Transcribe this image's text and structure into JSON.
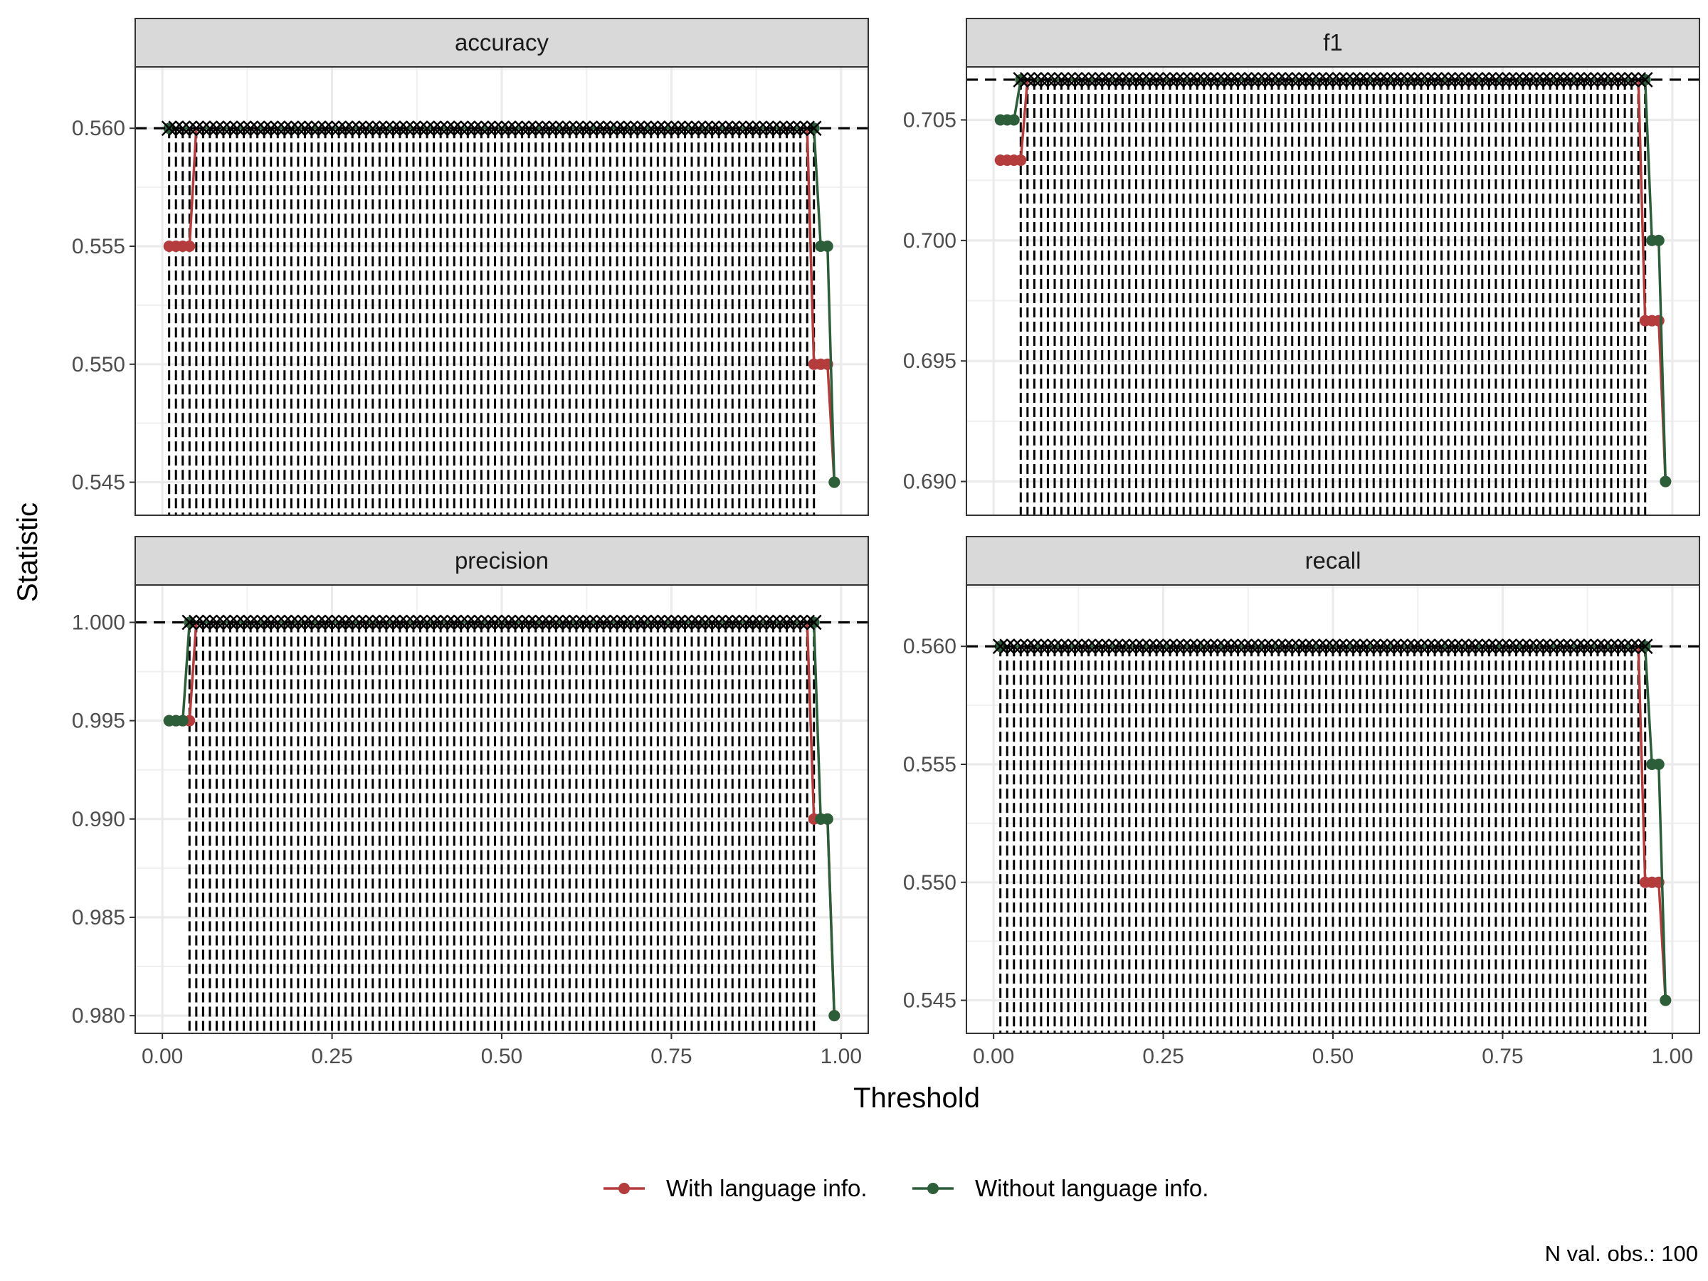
{
  "chart_data": {
    "type": "line",
    "layout": "facet-grid-2x2",
    "xlabel": "Threshold",
    "ylabel": "Statistic",
    "caption": "N val. obs.: 100",
    "legend_position": "bottom",
    "grid": true,
    "colors": {
      "with": "#b43c3c",
      "without": "#2d5e3a",
      "reference": "#000000"
    },
    "series": [
      {
        "name": "With language info.",
        "key": "with"
      },
      {
        "name": "Without language info.",
        "key": "without"
      }
    ],
    "x_ticks": [
      "0.00",
      "0.25",
      "0.50",
      "0.75",
      "1.00"
    ],
    "x_tick_values": [
      0,
      0.25,
      0.5,
      0.75,
      1
    ],
    "xlim": [
      -0.04,
      1.04
    ],
    "panels": [
      {
        "label": "accuracy",
        "ylim": [
          0.5436,
          0.5626
        ],
        "y_ticks": [
          "0.545",
          "0.550",
          "0.555",
          "0.560"
        ],
        "y_tick_values": [
          0.545,
          0.55,
          0.555,
          0.56
        ],
        "reference": 0.56,
        "optimal_range": [
          0.01,
          0.96
        ],
        "with": [
          [
            0.01,
            0.555
          ],
          [
            0.02,
            0.555
          ],
          [
            0.03,
            0.555
          ],
          [
            0.04,
            0.555
          ],
          [
            0.05,
            0.56
          ],
          [
            0.95,
            0.56
          ],
          [
            0.96,
            0.55
          ],
          [
            0.97,
            0.55
          ],
          [
            0.98,
            0.55
          ],
          [
            0.99,
            0.545
          ]
        ],
        "without": [
          [
            0.01,
            0.56
          ],
          [
            0.95,
            0.56
          ],
          [
            0.96,
            0.56
          ],
          [
            0.97,
            0.555
          ],
          [
            0.98,
            0.555
          ],
          [
            0.99,
            0.545
          ]
        ]
      },
      {
        "label": "f1",
        "ylim": [
          0.6886,
          0.7072
        ],
        "y_ticks": [
          "0.690",
          "0.695",
          "0.700",
          "0.705"
        ],
        "y_tick_values": [
          0.69,
          0.695,
          0.7,
          0.705
        ],
        "reference": 0.70667,
        "optimal_range": [
          0.04,
          0.96
        ],
        "with": [
          [
            0.01,
            0.70333
          ],
          [
            0.02,
            0.70333
          ],
          [
            0.03,
            0.70333
          ],
          [
            0.04,
            0.70333
          ],
          [
            0.05,
            0.70667
          ],
          [
            0.95,
            0.70667
          ],
          [
            0.96,
            0.69667
          ],
          [
            0.97,
            0.69667
          ],
          [
            0.98,
            0.69667
          ],
          [
            0.99,
            0.69
          ]
        ],
        "without": [
          [
            0.01,
            0.705
          ],
          [
            0.02,
            0.705
          ],
          [
            0.03,
            0.705
          ],
          [
            0.04,
            0.70667
          ],
          [
            0.95,
            0.70667
          ],
          [
            0.96,
            0.70667
          ],
          [
            0.97,
            0.7
          ],
          [
            0.98,
            0.7
          ],
          [
            0.99,
            0.69
          ]
        ]
      },
      {
        "label": "precision",
        "ylim": [
          0.9791,
          1.0019
        ],
        "y_ticks": [
          "0.980",
          "0.985",
          "0.990",
          "0.995",
          "1.000"
        ],
        "y_tick_values": [
          0.98,
          0.985,
          0.99,
          0.995,
          1
        ],
        "reference": 1.0,
        "optimal_range": [
          0.04,
          0.96
        ],
        "with": [
          [
            0.01,
            0.995
          ],
          [
            0.02,
            0.995
          ],
          [
            0.03,
            0.995
          ],
          [
            0.04,
            0.995
          ],
          [
            0.05,
            1.0
          ],
          [
            0.95,
            1.0
          ],
          [
            0.96,
            0.99
          ],
          [
            0.97,
            0.99
          ],
          [
            0.98,
            0.99
          ],
          [
            0.99,
            0.98
          ]
        ],
        "without": [
          [
            0.01,
            0.995
          ],
          [
            0.02,
            0.995
          ],
          [
            0.03,
            0.995
          ],
          [
            0.04,
            1.0
          ],
          [
            0.95,
            1.0
          ],
          [
            0.96,
            1.0
          ],
          [
            0.97,
            0.99
          ],
          [
            0.98,
            0.99
          ],
          [
            0.99,
            0.98
          ]
        ]
      },
      {
        "label": "recall",
        "ylim": [
          0.5436,
          0.5626
        ],
        "y_ticks": [
          "0.545",
          "0.550",
          "0.555",
          "0.560"
        ],
        "y_tick_values": [
          0.545,
          0.55,
          0.555,
          0.56
        ],
        "reference": 0.56,
        "optimal_range": [
          0.01,
          0.96
        ],
        "with": [
          [
            0.01,
            0.56
          ],
          [
            0.95,
            0.56
          ],
          [
            0.96,
            0.55
          ],
          [
            0.97,
            0.55
          ],
          [
            0.98,
            0.55
          ],
          [
            0.99,
            0.545
          ]
        ],
        "without": [
          [
            0.01,
            0.56
          ],
          [
            0.95,
            0.56
          ],
          [
            0.96,
            0.56
          ],
          [
            0.97,
            0.555
          ],
          [
            0.98,
            0.555
          ],
          [
            0.99,
            0.545
          ]
        ]
      }
    ]
  }
}
